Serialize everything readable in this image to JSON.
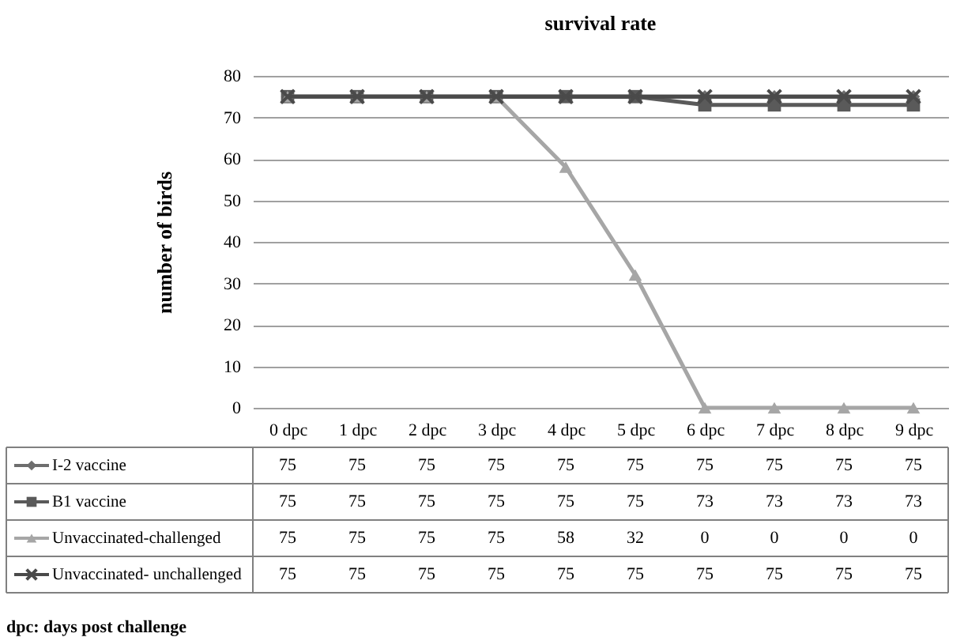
{
  "chart_data": {
    "type": "line",
    "title": "survival rate",
    "ylabel": "number of birds",
    "categories": [
      "0 dpc",
      "1 dpc",
      "2 dpc",
      "3 dpc",
      "4 dpc",
      "5 dpc",
      "6 dpc",
      "7 dpc",
      "8 dpc",
      "9 dpc"
    ],
    "series": [
      {
        "name": "I-2 vaccine",
        "color": "#6e6e6e",
        "marker": "diamond",
        "values": [
          75,
          75,
          75,
          75,
          75,
          75,
          75,
          75,
          75,
          75
        ]
      },
      {
        "name": "B1 vaccine",
        "color": "#5a5a5a",
        "marker": "square",
        "values": [
          75,
          75,
          75,
          75,
          75,
          75,
          73,
          73,
          73,
          73
        ]
      },
      {
        "name": "Unvaccinated-challenged",
        "color": "#a6a6a6",
        "marker": "triangle",
        "values": [
          75,
          75,
          75,
          75,
          58,
          32,
          0,
          0,
          0,
          0
        ]
      },
      {
        "name": "Unvaccinated- unchallenged",
        "color": "#4a4a4a",
        "marker": "cross",
        "values": [
          75,
          75,
          75,
          75,
          75,
          75,
          75,
          75,
          75,
          75
        ]
      }
    ],
    "ylim": [
      0,
      80
    ],
    "yticks": [
      0,
      10,
      20,
      30,
      40,
      50,
      60,
      70,
      80
    ],
    "grid": "y",
    "legend": "bottom",
    "data_labels": true,
    "annotations": [
      "dpc: days post challenge"
    ]
  }
}
